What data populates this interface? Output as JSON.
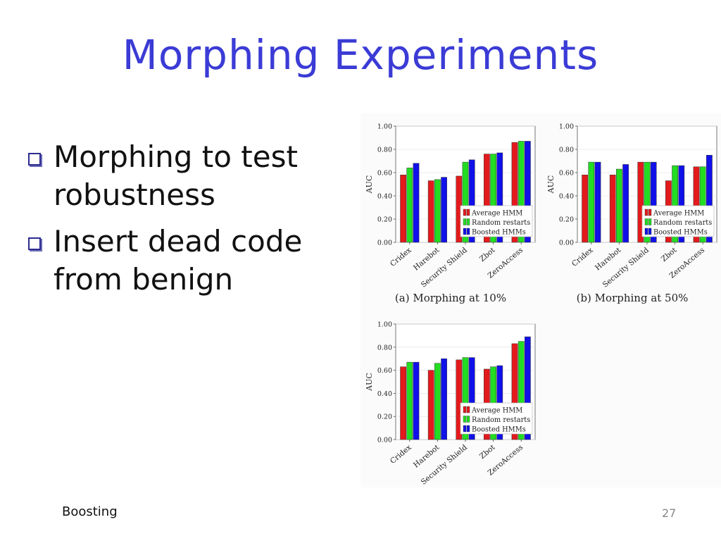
{
  "slide": {
    "title": "Morphing Experiments",
    "bullets": [
      "Morphing to test robustness",
      "Insert dead code from benign"
    ],
    "footer_left": "Boosting",
    "page_number": "27"
  },
  "colors": {
    "title": "#3b3bd6",
    "average_hmm": "#e31a1c",
    "random_restarts": "#22dd22",
    "boosted_hmms": "#1010e8"
  },
  "chart_data": [
    {
      "type": "bar",
      "caption": "(a) Morphing at 10%",
      "ylabel": "AUC",
      "ylim": [
        0,
        1
      ],
      "yticks": [
        "0.00",
        "0.20",
        "0.40",
        "0.60",
        "0.80",
        "1.00"
      ],
      "categories": [
        "Cridex",
        "Harebot",
        "Security Shield",
        "Zbot",
        "ZeroAccess"
      ],
      "legend_position": "bottom-right",
      "series": [
        {
          "name": "Average HMM",
          "values": [
            0.58,
            0.53,
            0.57,
            0.76,
            0.86
          ]
        },
        {
          "name": "Random restarts",
          "values": [
            0.64,
            0.54,
            0.69,
            0.76,
            0.87
          ]
        },
        {
          "name": "Boosted HMMs",
          "values": [
            0.68,
            0.56,
            0.71,
            0.77,
            0.87
          ]
        }
      ]
    },
    {
      "type": "bar",
      "caption": "(b) Morphing at 50%",
      "ylabel": "AUC",
      "ylim": [
        0,
        1
      ],
      "yticks": [
        "0.00",
        "0.20",
        "0.40",
        "0.60",
        "0.80",
        "1.00"
      ],
      "categories": [
        "Cridex",
        "Harebot",
        "Security Shield",
        "Zbot",
        "ZeroAccess"
      ],
      "legend_position": "bottom-right",
      "series": [
        {
          "name": "Average HMM",
          "values": [
            0.58,
            0.58,
            0.69,
            0.53,
            0.65
          ]
        },
        {
          "name": "Random restarts",
          "values": [
            0.69,
            0.63,
            0.69,
            0.66,
            0.65
          ]
        },
        {
          "name": "Boosted HMMs",
          "values": [
            0.69,
            0.67,
            0.69,
            0.66,
            0.75
          ]
        }
      ]
    },
    {
      "type": "bar",
      "caption": "",
      "ylabel": "AUC",
      "ylim": [
        0,
        1
      ],
      "yticks": [
        "0.00",
        "0.20",
        "0.40",
        "0.60",
        "0.80",
        "1.00"
      ],
      "categories": [
        "Cridex",
        "Harebot",
        "Security Shield",
        "Zbot",
        "ZeroAccess"
      ],
      "legend_position": "bottom-right",
      "series": [
        {
          "name": "Average HMM",
          "values": [
            0.63,
            0.6,
            0.69,
            0.61,
            0.83
          ]
        },
        {
          "name": "Random restarts",
          "values": [
            0.67,
            0.66,
            0.71,
            0.63,
            0.85
          ]
        },
        {
          "name": "Boosted HMMs",
          "values": [
            0.67,
            0.7,
            0.71,
            0.64,
            0.89
          ]
        }
      ]
    }
  ]
}
